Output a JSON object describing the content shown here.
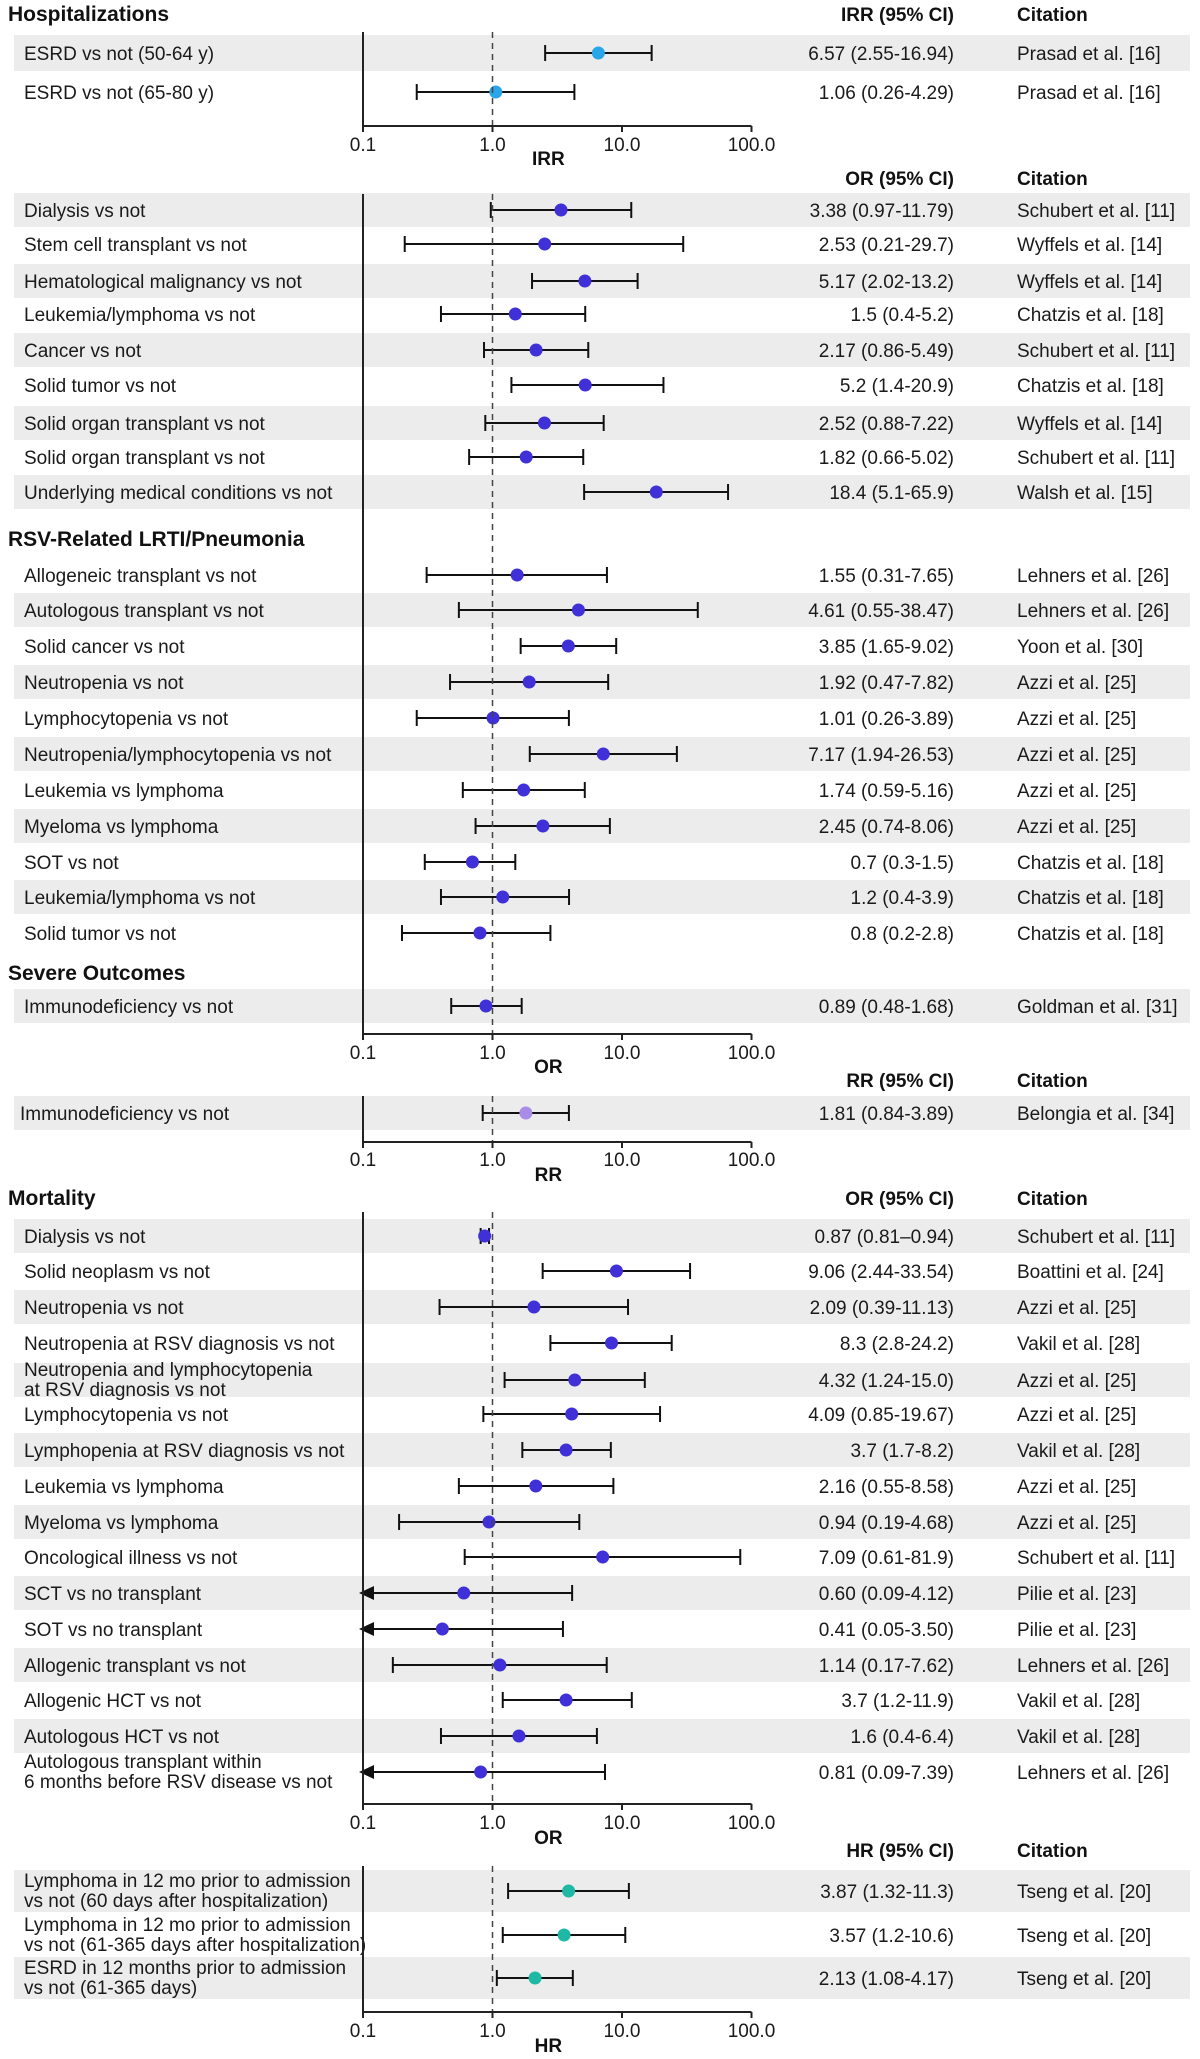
{
  "chart_data": [
    {
      "type": "forest",
      "section_title": "Hospitalizations",
      "measure": "IRR",
      "estimate_header": "IRR (95% CI)",
      "citation_header": "Citation",
      "axis_label": "IRR",
      "scale": "log",
      "xlim": [
        0.1,
        100
      ],
      "ticks": [
        "0.1",
        "1.0",
        "10.0",
        "100.0"
      ],
      "reference_line": 1.0,
      "marker_color": "#2aa5e8",
      "rows": [
        {
          "label": "ESRD vs not (50-64 y)",
          "est": 6.57,
          "lo": 2.55,
          "hi": 16.94,
          "text": "6.57 (2.55-16.94)",
          "cite": "Prasad et al. [16]"
        },
        {
          "label": "ESRD vs not (65-80 y)",
          "est": 1.06,
          "lo": 0.26,
          "hi": 4.29,
          "text": "1.06 (0.26-4.29)",
          "cite": "Prasad et al. [16]"
        }
      ]
    },
    {
      "type": "forest",
      "measure": "OR",
      "estimate_header": "OR (95% CI)",
      "citation_header": "Citation",
      "axis_label": "OR",
      "scale": "log",
      "xlim": [
        0.1,
        100
      ],
      "ticks": [
        "0.1",
        "1.0",
        "10.0",
        "100.0"
      ],
      "reference_line": 1.0,
      "marker_color": "#3f30d8",
      "rows": [
        {
          "label": "Dialysis vs not",
          "est": 3.38,
          "lo": 0.97,
          "hi": 11.79,
          "text": "3.38 (0.97-11.79)",
          "cite": "Schubert et al. [11]"
        },
        {
          "label": "Stem cell transplant vs not",
          "est": 2.53,
          "lo": 0.21,
          "hi": 29.7,
          "text": "2.53 (0.21-29.7)",
          "cite": "Wyffels et al. [14]"
        },
        {
          "label": "Hematological malignancy vs not",
          "est": 5.17,
          "lo": 2.02,
          "hi": 13.2,
          "text": "5.17 (2.02-13.2)",
          "cite": "Wyffels et al. [14]"
        },
        {
          "label": "Leukemia/lymphoma vs not",
          "est": 1.5,
          "lo": 0.4,
          "hi": 5.2,
          "text": "1.5 (0.4-5.2)",
          "cite": "Chatzis et al. [18]"
        },
        {
          "label": "Cancer vs not",
          "est": 2.17,
          "lo": 0.86,
          "hi": 5.49,
          "text": "2.17 (0.86-5.49)",
          "cite": "Schubert et al. [11]"
        },
        {
          "label": "Solid tumor vs not",
          "est": 5.2,
          "lo": 1.4,
          "hi": 20.9,
          "text": "5.2 (1.4-20.9)",
          "cite": "Chatzis et al. [18]"
        },
        {
          "label": "Solid organ transplant vs not",
          "est": 2.52,
          "lo": 0.88,
          "hi": 7.22,
          "text": "2.52 (0.88-7.22)",
          "cite": "Wyffels et al. [14]"
        },
        {
          "label": "Solid organ transplant vs not",
          "est": 1.82,
          "lo": 0.66,
          "hi": 5.02,
          "text": "1.82 (0.66-5.02)",
          "cite": "Schubert et al. [11]"
        },
        {
          "label": "Underlying medical conditions vs not",
          "est": 18.4,
          "lo": 5.1,
          "hi": 65.9,
          "text": "18.4 (5.1-65.9)",
          "cite": "Walsh et al. [15]"
        },
        {
          "section": "RSV-Related LRTI/Pneumonia"
        },
        {
          "label": "Allogeneic transplant vs not",
          "est": 1.55,
          "lo": 0.31,
          "hi": 7.65,
          "text": "1.55 (0.31-7.65)",
          "cite": "Lehners et al. [26]"
        },
        {
          "label": "Autologous transplant vs not",
          "est": 4.61,
          "lo": 0.55,
          "hi": 38.47,
          "text": "4.61 (0.55-38.47)",
          "cite": "Lehners et al. [26]"
        },
        {
          "label": "Solid cancer vs not",
          "est": 3.85,
          "lo": 1.65,
          "hi": 9.02,
          "text": "3.85 (1.65-9.02)",
          "cite": "Yoon et al. [30]"
        },
        {
          "label": "Neutropenia vs not",
          "est": 1.92,
          "lo": 0.47,
          "hi": 7.82,
          "text": "1.92 (0.47-7.82)",
          "cite": "Azzi et al. [25]"
        },
        {
          "label": "Lymphocytopenia vs not",
          "est": 1.01,
          "lo": 0.26,
          "hi": 3.89,
          "text": "1.01 (0.26-3.89)",
          "cite": "Azzi et al. [25]"
        },
        {
          "label": "Neutropenia/lymphocytopenia vs not",
          "est": 7.17,
          "lo": 1.94,
          "hi": 26.53,
          "text": "7.17 (1.94-26.53)",
          "cite": "Azzi et al. [25]"
        },
        {
          "label": "Leukemia vs lymphoma",
          "est": 1.74,
          "lo": 0.59,
          "hi": 5.16,
          "text": "1.74 (0.59-5.16)",
          "cite": "Azzi et al. [25]"
        },
        {
          "label": "Myeloma vs lymphoma",
          "est": 2.45,
          "lo": 0.74,
          "hi": 8.06,
          "text": "2.45 (0.74-8.06)",
          "cite": "Azzi et al. [25]"
        },
        {
          "label": "SOT vs not",
          "est": 0.7,
          "lo": 0.3,
          "hi": 1.5,
          "text": "0.7 (0.3-1.5)",
          "cite": "Chatzis et al. [18]"
        },
        {
          "label": "Leukemia/lymphoma vs not",
          "est": 1.2,
          "lo": 0.4,
          "hi": 3.9,
          "text": "1.2 (0.4-3.9)",
          "cite": "Chatzis et al. [18]"
        },
        {
          "label": "Solid tumor vs not",
          "est": 0.8,
          "lo": 0.2,
          "hi": 2.8,
          "text": "0.8 (0.2-2.8)",
          "cite": "Chatzis et al. [18]"
        },
        {
          "section": "Severe Outcomes"
        },
        {
          "label": "Immunodeficiency vs not",
          "est": 0.89,
          "lo": 0.48,
          "hi": 1.68,
          "text": "0.89 (0.48-1.68)",
          "cite": "Goldman et al. [31]"
        }
      ]
    },
    {
      "type": "forest",
      "measure": "RR",
      "estimate_header": "RR (95% CI)",
      "citation_header": "Citation",
      "axis_label": "RR",
      "scale": "log",
      "xlim": [
        0.1,
        100
      ],
      "ticks": [
        "0.1",
        "1.0",
        "10.0",
        "100.0"
      ],
      "reference_line": 1.0,
      "marker_color": "#a98be8",
      "rows": [
        {
          "label": "Immunodeficiency vs not",
          "est": 1.81,
          "lo": 0.84,
          "hi": 3.89,
          "text": "1.81 (0.84-3.89)",
          "cite": "Belongia et al. [34]"
        }
      ]
    },
    {
      "type": "forest",
      "section_title": "Mortality",
      "measure": "OR",
      "estimate_header": "OR (95% CI)",
      "citation_header": "Citation",
      "axis_label": "OR",
      "scale": "log",
      "xlim": [
        0.1,
        100
      ],
      "ticks": [
        "0.1",
        "1.0",
        "10.0",
        "100.0"
      ],
      "reference_line": 1.0,
      "marker_color": "#3f30d8",
      "rows": [
        {
          "label": "Dialysis vs not",
          "est": 0.87,
          "lo": 0.81,
          "hi": 0.94,
          "text": "0.87 (0.81–0.94)",
          "cite": "Schubert et al. [11]"
        },
        {
          "label": "Solid neoplasm vs not",
          "est": 9.06,
          "lo": 2.44,
          "hi": 33.54,
          "text": "9.06 (2.44-33.54)",
          "cite": "Boattini et al. [24]"
        },
        {
          "label": "Neutropenia vs not",
          "est": 2.09,
          "lo": 0.39,
          "hi": 11.13,
          "text": "2.09 (0.39-11.13)",
          "cite": "Azzi et al. [25]"
        },
        {
          "label": "Neutropenia at RSV diagnosis vs not",
          "est": 8.3,
          "lo": 2.8,
          "hi": 24.2,
          "text": "8.3 (2.8-24.2)",
          "cite": "Vakil et al. [28]"
        },
        {
          "label": "Neutropenia and lymphocytopenia\nat RSV diagnosis vs not",
          "est": 4.32,
          "lo": 1.24,
          "hi": 15.0,
          "text": "4.32 (1.24-15.0)",
          "cite": "Azzi et al. [25]"
        },
        {
          "label": "Lymphocytopenia vs not",
          "est": 4.09,
          "lo": 0.85,
          "hi": 19.67,
          "text": "4.09 (0.85-19.67)",
          "cite": "Azzi et al. [25]"
        },
        {
          "label": "Lymphopenia at RSV diagnosis vs not",
          "est": 3.7,
          "lo": 1.7,
          "hi": 8.2,
          "text": "3.7 (1.7-8.2)",
          "cite": "Vakil et al. [28]"
        },
        {
          "label": "Leukemia vs lymphoma",
          "est": 2.16,
          "lo": 0.55,
          "hi": 8.58,
          "text": "2.16 (0.55-8.58)",
          "cite": "Azzi et al. [25]"
        },
        {
          "label": "Myeloma vs lymphoma",
          "est": 0.94,
          "lo": 0.19,
          "hi": 4.68,
          "text": "0.94 (0.19-4.68)",
          "cite": "Azzi et al. [25]"
        },
        {
          "label": "Oncological illness vs not",
          "est": 7.09,
          "lo": 0.61,
          "hi": 81.9,
          "text": "7.09 (0.61-81.9)",
          "cite": "Schubert et al. [11]"
        },
        {
          "label": "SCT vs no transplant",
          "est": 0.6,
          "lo": 0.09,
          "hi": 4.12,
          "text": "0.60 (0.09-4.12)",
          "cite": "Pilie et al. [23]"
        },
        {
          "label": "SOT vs no transplant",
          "est": 0.41,
          "lo": 0.05,
          "hi": 3.5,
          "text": "0.41 (0.05-3.50)",
          "cite": "Pilie et al. [23]"
        },
        {
          "label": "Allogenic transplant vs not",
          "est": 1.14,
          "lo": 0.17,
          "hi": 7.62,
          "text": "1.14 (0.17-7.62)",
          "cite": "Lehners et al. [26]"
        },
        {
          "label": "Allogenic HCT vs not",
          "est": 3.7,
          "lo": 1.2,
          "hi": 11.9,
          "text": "3.7 (1.2-11.9)",
          "cite": "Vakil et al. [28]"
        },
        {
          "label": "Autologous HCT vs not",
          "est": 1.6,
          "lo": 0.4,
          "hi": 6.4,
          "text": "1.6 (0.4-6.4)",
          "cite": "Vakil et al. [28]"
        },
        {
          "label": "Autologous transplant within\n6 months before RSV disease vs not",
          "est": 0.81,
          "lo": 0.09,
          "hi": 7.39,
          "text": "0.81 (0.09-7.39)",
          "cite": "Lehners et al. [26]"
        }
      ]
    },
    {
      "type": "forest",
      "measure": "HR",
      "estimate_header": "HR (95% CI)",
      "citation_header": "Citation",
      "axis_label": "HR",
      "scale": "log",
      "xlim": [
        0.1,
        100
      ],
      "ticks": [
        "0.1",
        "1.0",
        "10.0",
        "100.0"
      ],
      "reference_line": 1.0,
      "marker_color": "#1fb8a4",
      "rows": [
        {
          "label": "Lymphoma in 12 mo prior to admission\nvs not (60 days after hospitalization)",
          "est": 3.87,
          "lo": 1.32,
          "hi": 11.3,
          "text": "3.87 (1.32-11.3)",
          "cite": "Tseng et al. [20]"
        },
        {
          "label": "Lymphoma in 12 mo prior to admission\nvs not (61-365 days after hospitalization)",
          "est": 3.57,
          "lo": 1.2,
          "hi": 10.6,
          "text": "3.57 (1.2-10.6)",
          "cite": "Tseng et al. [20]"
        },
        {
          "label": "ESRD in 12 months prior to admission\nvs not (61-365 days)",
          "est": 2.13,
          "lo": 1.08,
          "hi": 4.17,
          "text": "2.13 (1.08-4.17)",
          "cite": "Tseng et al. [20]"
        }
      ]
    }
  ]
}
